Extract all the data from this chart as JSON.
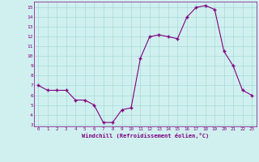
{
  "x": [
    0,
    1,
    2,
    3,
    4,
    5,
    6,
    7,
    8,
    9,
    10,
    11,
    12,
    13,
    14,
    15,
    16,
    17,
    18,
    19,
    20,
    21,
    22,
    23
  ],
  "y": [
    7.0,
    6.5,
    6.5,
    6.5,
    5.5,
    5.5,
    5.0,
    3.2,
    3.2,
    4.5,
    4.7,
    9.8,
    12.0,
    12.2,
    12.0,
    11.8,
    14.0,
    15.0,
    15.2,
    14.8,
    10.5,
    9.0,
    6.5,
    6.0
  ],
  "xlabel": "Windchill (Refroidissement éolien,°C)",
  "xlim": [
    -0.5,
    23.5
  ],
  "ylim": [
    2.8,
    15.6
  ],
  "yticks": [
    3,
    4,
    5,
    6,
    7,
    8,
    9,
    10,
    11,
    12,
    13,
    14,
    15
  ],
  "xticks": [
    0,
    1,
    2,
    3,
    4,
    5,
    6,
    7,
    8,
    9,
    10,
    11,
    12,
    13,
    14,
    15,
    16,
    17,
    18,
    19,
    20,
    21,
    22,
    23
  ],
  "line_color": "#800080",
  "marker_color": "#800080",
  "bg_color": "#d0f0f0",
  "grid_color": "#a8d8d8",
  "label_color": "#800080",
  "axis_label_color": "#800080"
}
